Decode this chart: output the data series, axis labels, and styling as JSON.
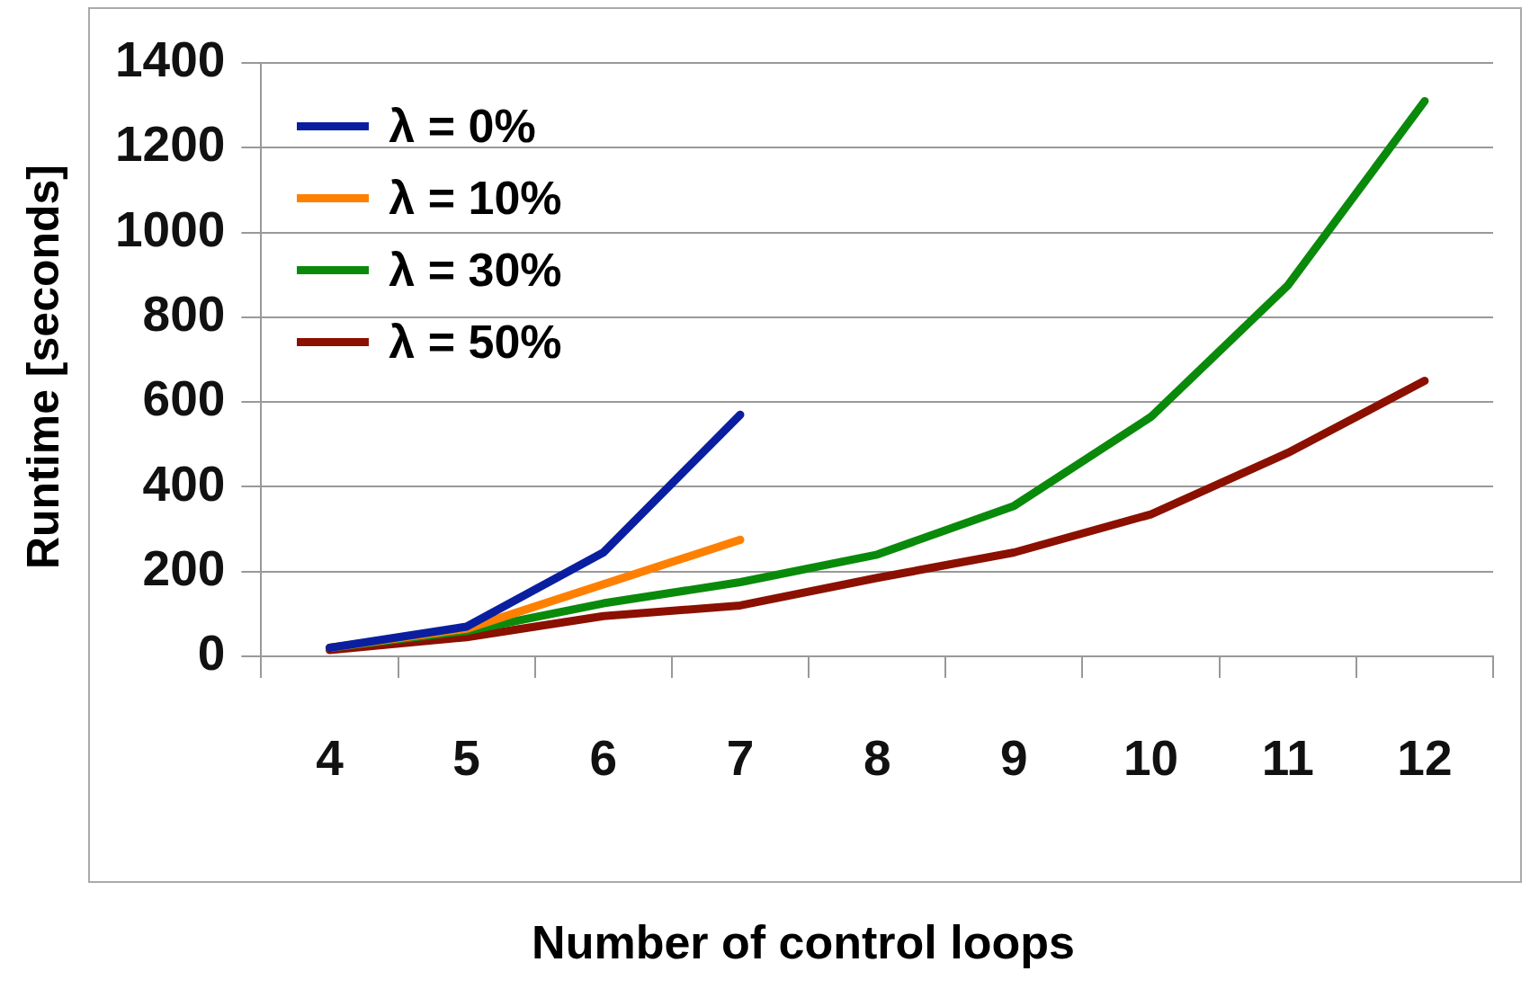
{
  "chart_data": {
    "type": "line",
    "xlabel": "Number of control loops",
    "ylabel": "Runtime [seconds]",
    "categories": [
      "4",
      "5",
      "6",
      "7",
      "8",
      "9",
      "10",
      "11",
      "12"
    ],
    "series": [
      {
        "name": "λ = 0%",
        "color": "#0a1fa0",
        "values": [
          20,
          70,
          245,
          570,
          null,
          null,
          null,
          null,
          null
        ]
      },
      {
        "name": "λ = 10%",
        "color": "#ff8000",
        "values": [
          20,
          65,
          170,
          275,
          null,
          null,
          null,
          null,
          null
        ]
      },
      {
        "name": "λ = 30%",
        "color": "#0a8a0a",
        "values": [
          20,
          60,
          125,
          175,
          240,
          355,
          565,
          875,
          1310
        ]
      },
      {
        "name": "λ = 50%",
        "color": "#8b1000",
        "values": [
          15,
          45,
          95,
          120,
          185,
          245,
          335,
          480,
          650
        ]
      }
    ],
    "ylim": [
      0,
      1400
    ],
    "yticks": [
      0,
      200,
      400,
      600,
      800,
      1000,
      1200,
      1400
    ],
    "grid": "y",
    "legend": "top left",
    "marker": "none",
    "line_style": "solid"
  }
}
